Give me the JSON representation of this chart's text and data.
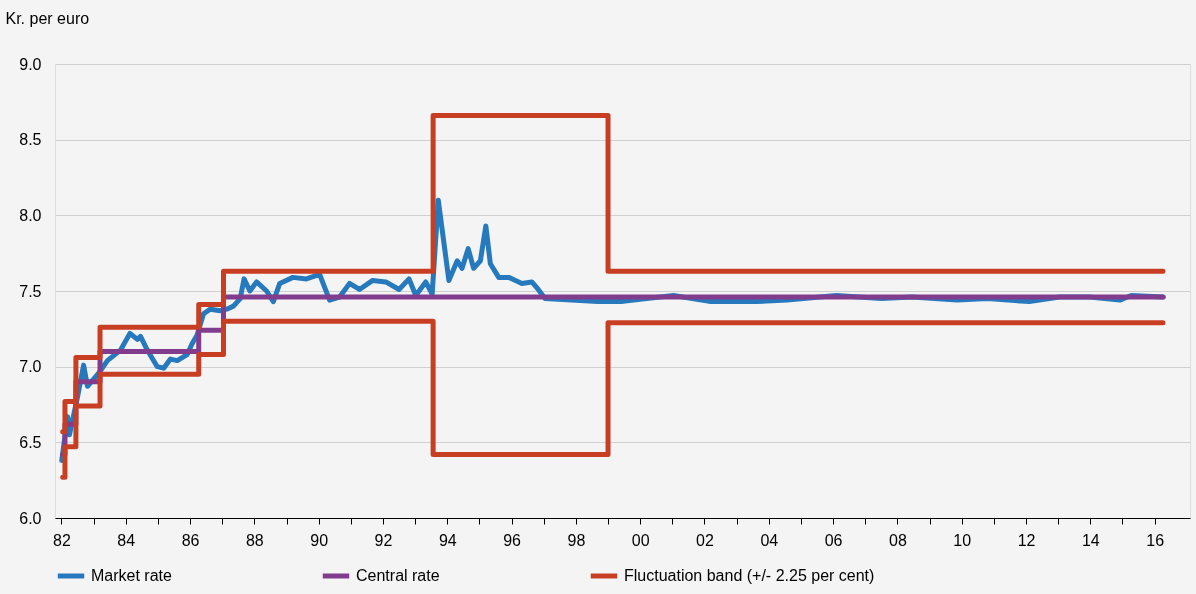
{
  "chart_data": {
    "type": "line",
    "ylabel": "Kr. per euro",
    "xlim": [
      1981.8,
      2017.1
    ],
    "ylim": [
      6,
      9
    ],
    "yticks": [
      {
        "value": 6,
        "label": "6.0"
      },
      {
        "value": 6.5,
        "label": "6.5"
      },
      {
        "value": 7,
        "label": "7.0"
      },
      {
        "value": 7.5,
        "label": "7.5"
      },
      {
        "value": 8,
        "label": "8.0"
      },
      {
        "value": 8.5,
        "label": "8.5"
      },
      {
        "value": 9,
        "label": "9.0"
      }
    ],
    "xticks": [
      {
        "value": 1982,
        "label": "82"
      },
      {
        "value": 1983,
        "label": null
      },
      {
        "value": 1984,
        "label": "84"
      },
      {
        "value": 1985,
        "label": null
      },
      {
        "value": 1986,
        "label": "86"
      },
      {
        "value": 1987,
        "label": null
      },
      {
        "value": 1988,
        "label": "88"
      },
      {
        "value": 1989,
        "label": null
      },
      {
        "value": 1990,
        "label": "90"
      },
      {
        "value": 1991,
        "label": null
      },
      {
        "value": 1992,
        "label": "92"
      },
      {
        "value": 1993,
        "label": null
      },
      {
        "value": 1994,
        "label": "94"
      },
      {
        "value": 1995,
        "label": null
      },
      {
        "value": 1996,
        "label": "96"
      },
      {
        "value": 1997,
        "label": null
      },
      {
        "value": 1998,
        "label": "98"
      },
      {
        "value": 1999,
        "label": null
      },
      {
        "value": 2000,
        "label": "00"
      },
      {
        "value": 2001,
        "label": null
      },
      {
        "value": 2002,
        "label": "02"
      },
      {
        "value": 2003,
        "label": null
      },
      {
        "value": 2004,
        "label": "04"
      },
      {
        "value": 2005,
        "label": null
      },
      {
        "value": 2006,
        "label": "06"
      },
      {
        "value": 2007,
        "label": null
      },
      {
        "value": 2008,
        "label": "08"
      },
      {
        "value": 2009,
        "label": null
      },
      {
        "value": 2010,
        "label": "10"
      },
      {
        "value": 2011,
        "label": null
      },
      {
        "value": 2012,
        "label": "12"
      },
      {
        "value": 2013,
        "label": null
      },
      {
        "value": 2014,
        "label": "14"
      },
      {
        "value": 2015,
        "label": null
      },
      {
        "value": 2016,
        "label": "16"
      }
    ],
    "grid": "y",
    "legend": "bottom",
    "line_style": "solid",
    "series": [
      {
        "name": "Market rate",
        "color": "#2679bd",
        "type": "line",
        "x": [
          1982.01,
          1982.19,
          1982.25,
          1982.5,
          1982.69,
          1982.81,
          1983.17,
          1983.43,
          1983.84,
          1984.13,
          1984.36,
          1984.46,
          1984.67,
          1984.98,
          1985.18,
          1985.39,
          1985.6,
          1985.91,
          1986.06,
          1986.22,
          1986.42,
          1986.63,
          1986.94,
          1987.14,
          1987.35,
          1987.56,
          1987.68,
          1987.86,
          1988.07,
          1988.38,
          1988.59,
          1988.79,
          1989.2,
          1989.62,
          1990.03,
          1990.34,
          1990.65,
          1990.96,
          1991.27,
          1991.68,
          1992.09,
          1992.5,
          1992.81,
          1993.02,
          1993.33,
          1993.53,
          1993.72,
          1994.05,
          1994.31,
          1994.46,
          1994.65,
          1994.82,
          1995.03,
          1995.2,
          1995.34,
          1995.6,
          1995.91,
          1996.32,
          1996.63,
          1996.83,
          1997.04,
          1997.86,
          1998.69,
          1999.4,
          2000.2,
          2001.04,
          2002.2,
          2003.63,
          2004.57,
          2006.1,
          2007.5,
          2008.45,
          2009.86,
          2010.8,
          2012.1,
          2013.04,
          2013.97,
          2014.92,
          2015.27,
          2016.27
        ],
        "values": [
          6.38,
          6.67,
          6.55,
          6.8,
          7.01,
          6.87,
          6.96,
          7.04,
          7.11,
          7.22,
          7.18,
          7.2,
          7.11,
          7.0,
          6.99,
          7.05,
          7.04,
          7.08,
          7.15,
          7.21,
          7.35,
          7.38,
          7.37,
          7.38,
          7.4,
          7.45,
          7.58,
          7.5,
          7.56,
          7.5,
          7.43,
          7.55,
          7.59,
          7.58,
          7.61,
          7.44,
          7.46,
          7.55,
          7.51,
          7.57,
          7.56,
          7.51,
          7.58,
          7.47,
          7.56,
          7.48,
          8.1,
          7.57,
          7.7,
          7.65,
          7.78,
          7.65,
          7.7,
          7.93,
          7.68,
          7.59,
          7.59,
          7.55,
          7.56,
          7.51,
          7.45,
          7.44,
          7.43,
          7.43,
          7.45,
          7.47,
          7.43,
          7.43,
          7.44,
          7.47,
          7.45,
          7.46,
          7.44,
          7.45,
          7.43,
          7.46,
          7.46,
          7.44,
          7.47,
          7.46
        ]
      },
      {
        "name": "Central rate",
        "color": "#823c8e",
        "type": "step",
        "x": [
          1982.04,
          1982.11,
          1982.45,
          1983.2,
          1986.27,
          1987.04,
          2016.26
        ],
        "values": [
          6.42,
          6.62,
          6.9,
          7.1,
          7.24,
          7.46,
          7.46
        ]
      },
      {
        "name": "Fluctuation band (+/- 2.25 per cent)",
        "color": "#c73e22",
        "type": "step",
        "x": [
          1982.04,
          1982.11,
          1982.45,
          1983.2,
          1986.27,
          1987.04,
          1993.56,
          1999.0,
          2016.26
        ],
        "values": [
          6.57,
          6.77,
          7.06,
          7.26,
          7.41,
          7.63,
          8.66,
          7.63,
          7.63
        ]
      },
      {
        "color": "#c73e22",
        "type": "step",
        "x": [
          1982.04,
          1982.11,
          1982.45,
          1983.2,
          1986.27,
          1987.04,
          1993.56,
          1999.0,
          2016.26
        ],
        "values": [
          6.27,
          6.47,
          6.74,
          6.95,
          7.08,
          7.3,
          6.42,
          7.29,
          7.29
        ]
      }
    ]
  }
}
